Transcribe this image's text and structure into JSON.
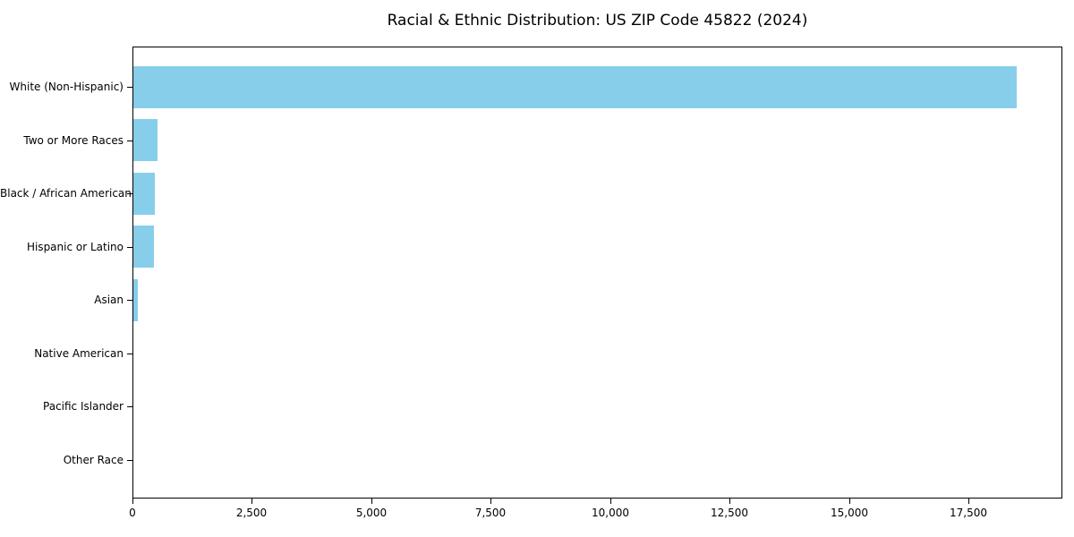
{
  "chart_data": {
    "type": "bar",
    "orientation": "horizontal",
    "title": "Racial & Ethnic Distribution: US ZIP Code 45822 (2024)",
    "categories": [
      "White (Non-Hispanic)",
      "Two or More Races",
      "Black / African American",
      "Hispanic or Latino",
      "Asian",
      "Native American",
      "Pacific Islander",
      "Other Race"
    ],
    "values": [
      18480,
      505,
      455,
      440,
      85,
      0,
      0,
      0
    ],
    "xlabel": "",
    "ylabel": "",
    "xlim": [
      0,
      19460
    ],
    "x_ticks": [
      0,
      2500,
      5000,
      7500,
      10000,
      12500,
      15000,
      17500
    ],
    "x_tick_labels": [
      "0",
      "2,500",
      "5,000",
      "7,500",
      "10,000",
      "12,500",
      "15,000",
      "17,500"
    ],
    "grid": false,
    "legend": "none",
    "bar_color": "#87CEEB",
    "axis_color": "#000000",
    "text_color": "#000000",
    "background_color": "#ffffff"
  }
}
